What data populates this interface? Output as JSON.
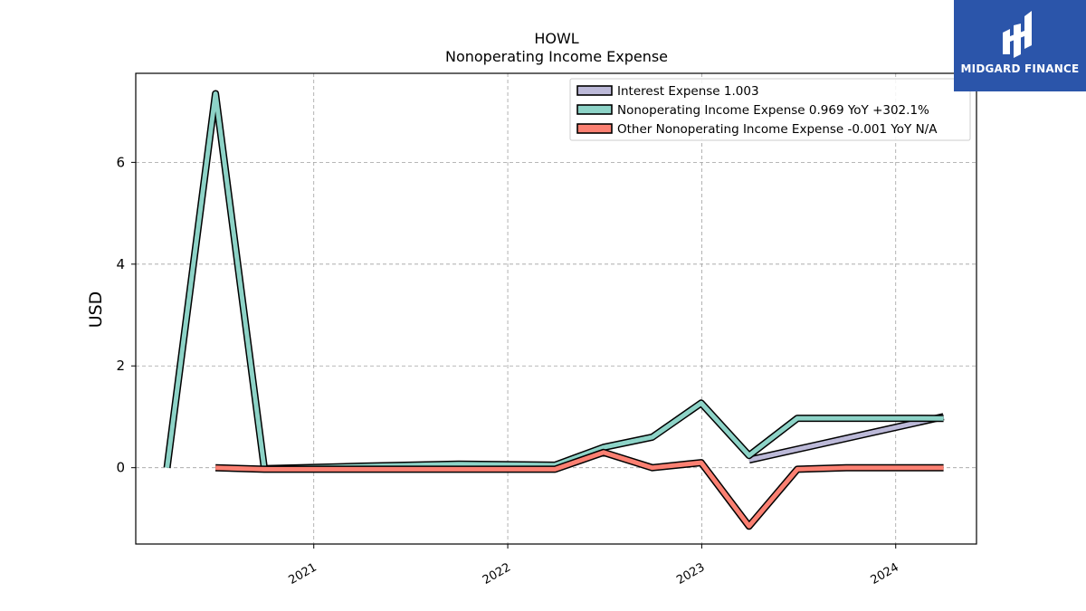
{
  "chart_data": {
    "type": "line",
    "title": "HOWL",
    "subtitle": "Nonoperating Income Expense",
    "ylabel": "USD",
    "xlabel": "",
    "xlim": [
      "2020-02-01",
      "2024-06-01"
    ],
    "ylim": [
      -1.5,
      7.75
    ],
    "yticks": [
      0,
      2,
      4,
      6
    ],
    "xticks": [
      "2021-01-01",
      "2022-01-01",
      "2023-01-01",
      "2024-01-01"
    ],
    "xtick_labels": [
      "2021",
      "2022",
      "2023",
      "2024"
    ],
    "grid": true,
    "legend_position": "top-right",
    "series": [
      {
        "name": "Interest Expense  1.003",
        "color": "#bcb9d8",
        "points": [
          [
            "2023-03-31",
            0.15
          ],
          [
            "2024-03-31",
            1.003
          ]
        ]
      },
      {
        "name": "Nonoperating Income Expense  0.969 YoY +302.1%",
        "color": "#8dd3c7",
        "points": [
          [
            "2020-03-31",
            0.0
          ],
          [
            "2020-06-30",
            7.35
          ],
          [
            "2020-09-30",
            -0.02
          ],
          [
            "2021-03-31",
            0.03
          ],
          [
            "2021-09-30",
            0.07
          ],
          [
            "2022-03-31",
            0.05
          ],
          [
            "2022-06-30",
            0.4
          ],
          [
            "2022-09-30",
            0.6
          ],
          [
            "2022-12-31",
            1.27
          ],
          [
            "2023-03-31",
            0.24
          ],
          [
            "2023-06-30",
            0.97
          ],
          [
            "2024-03-31",
            0.969
          ]
        ]
      },
      {
        "name": "Other Nonoperating Income Expense  -0.001 YoY N/A",
        "color": "#fb8072",
        "points": [
          [
            "2020-06-30",
            0.0
          ],
          [
            "2020-09-30",
            -0.03
          ],
          [
            "2021-06-30",
            -0.03
          ],
          [
            "2022-03-31",
            -0.03
          ],
          [
            "2022-06-30",
            0.3
          ],
          [
            "2022-09-30",
            0.0
          ],
          [
            "2022-12-31",
            0.1
          ],
          [
            "2023-03-31",
            -1.15
          ],
          [
            "2023-06-30",
            -0.03
          ],
          [
            "2023-09-30",
            0.0
          ],
          [
            "2024-03-31",
            -0.001
          ]
        ]
      }
    ]
  },
  "logo": {
    "brand": "MIDGARD FINANCE"
  }
}
